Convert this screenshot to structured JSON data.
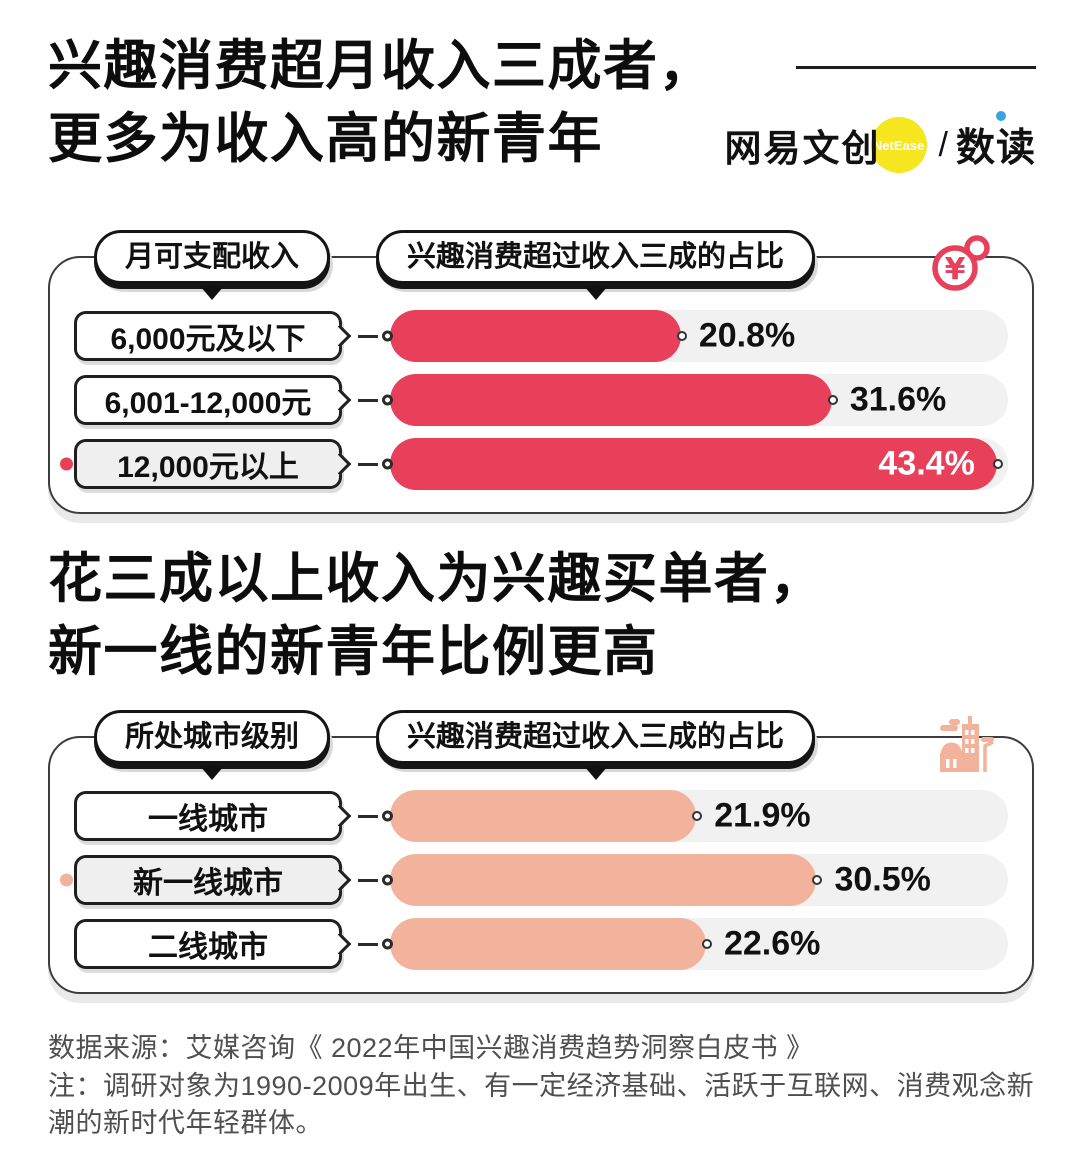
{
  "brand": {
    "wordmark": "网易文创",
    "badge": "NetEase",
    "separator": "/",
    "product": "数读",
    "badge_color": "#F5E61F",
    "product_dot_color": "#38A3DE"
  },
  "sections": [
    {
      "title_line1": "兴趣消费超月收入三成者，",
      "title_line2": "更多为收入高的新青年"
    },
    {
      "title_line1": "花三成以上收入为兴趣买单者，",
      "title_line2": "新一线的新青年比例更高"
    }
  ],
  "chart_data": [
    {
      "type": "bar",
      "orientation": "horizontal",
      "title": "兴趣消费超月收入三成者，更多为收入高的新青年",
      "group_header": "月可支配收入",
      "value_header": "兴趣消费超过收入三成的占比",
      "corner_icon": "yen-coins-icon",
      "bar_color": "#E8405A",
      "track_color": "#F1F1F1",
      "highlight_dot_color": "#E8405A",
      "xlim": [
        0,
        44.2
      ],
      "categories": [
        "6,000元及以下",
        "6,001-12,000元",
        "12,000元以上"
      ],
      "values": [
        20.8,
        31.6,
        43.4
      ],
      "rows": [
        {
          "category": "6,000元及以下",
          "value": 20.8,
          "value_label": "20.8%",
          "highlighted": false,
          "value_label_inside": false
        },
        {
          "category": "6,001-12,000元",
          "value": 31.6,
          "value_label": "31.6%",
          "highlighted": false,
          "value_label_inside": false
        },
        {
          "category": "12,000元以上",
          "value": 43.4,
          "value_label": "43.4%",
          "highlighted": true,
          "value_label_inside": true
        }
      ]
    },
    {
      "type": "bar",
      "orientation": "horizontal",
      "title": "花三成以上收入为兴趣买单者，新一线的新青年比例更高",
      "group_header": "所处城市级别",
      "value_header": "兴趣消费超过收入三成的占比",
      "corner_icon": "city-buildings-icon",
      "bar_color": "#F2B29C",
      "track_color": "#F1F1F1",
      "highlight_dot_color": "#F2B29C",
      "xlim": [
        0,
        44.2
      ],
      "categories": [
        "一线城市",
        "新一线城市",
        "二线城市"
      ],
      "values": [
        21.9,
        30.5,
        22.6
      ],
      "rows": [
        {
          "category": "一线城市",
          "value": 21.9,
          "value_label": "21.9%",
          "highlighted": false,
          "value_label_inside": false
        },
        {
          "category": "新一线城市",
          "value": 30.5,
          "value_label": "30.5%",
          "highlighted": true,
          "value_label_inside": false
        },
        {
          "category": "二线城市",
          "value": 22.6,
          "value_label": "22.6%",
          "highlighted": false,
          "value_label_inside": false
        }
      ]
    }
  ],
  "footer": {
    "source": "数据来源：艾媒咨询《 2022年中国兴趣消费趋势洞察白皮书 》",
    "note": "注：调研对象为1990-2009年出生、有一定经济基础、活跃于互联网、消费观念新潮的新时代年轻群体。"
  }
}
